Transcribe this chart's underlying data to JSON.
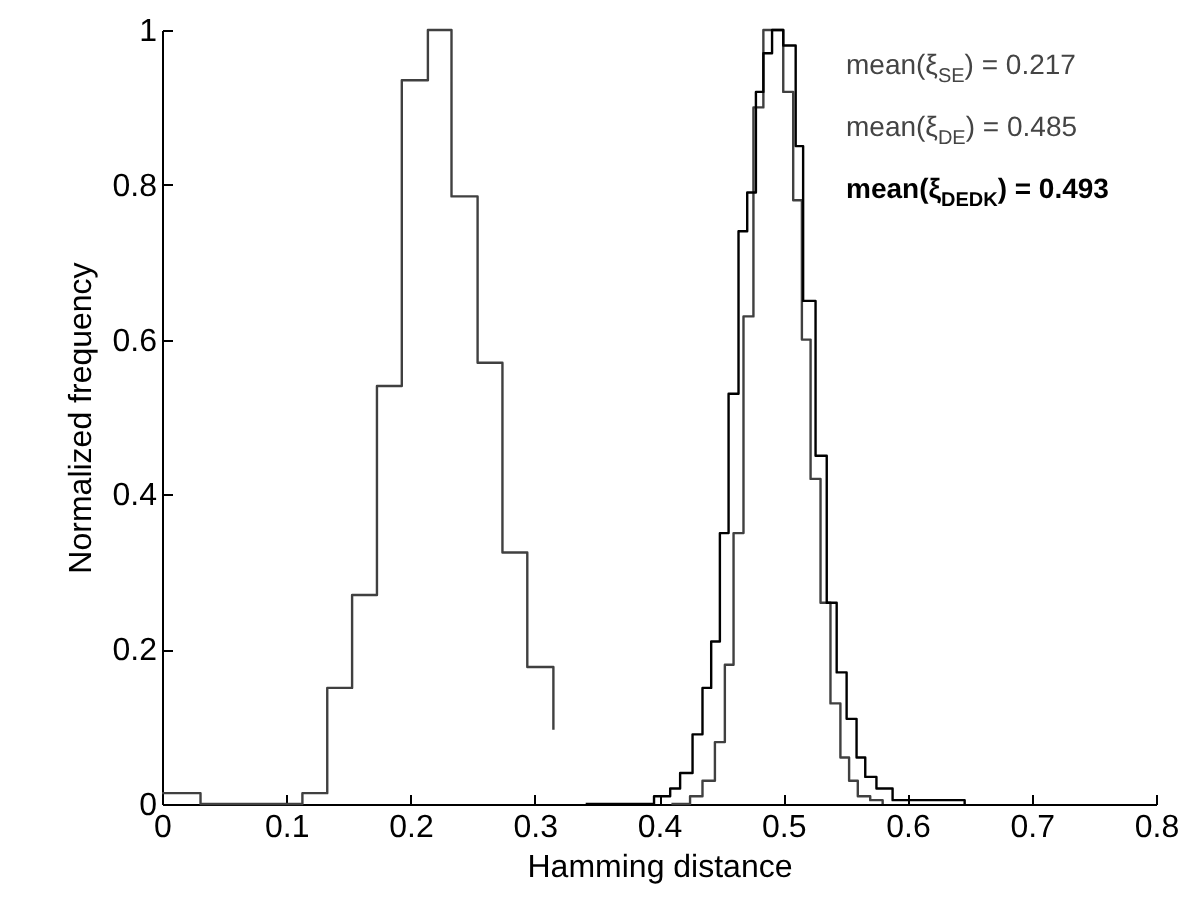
{
  "chart_data": {
    "type": "step",
    "xlabel": "Hamming distance",
    "ylabel": "Normalized frequency",
    "xlim": [
      0,
      0.8
    ],
    "xticks": [
      0,
      0.1,
      0.2,
      0.3,
      0.4,
      0.5,
      0.6,
      0.7,
      0.8
    ],
    "ylim": [
      0,
      1
    ],
    "yticks": [
      0,
      {
        "value": 0.2,
        "label": "0.2"
      },
      {
        "value": 0.4,
        "label": "0.4"
      },
      {
        "value": 0.6,
        "label": "0.6"
      },
      {
        "value": 0.8,
        "label": "0.8"
      },
      1
    ],
    "grid": false,
    "marker": "none",
    "line_style": "solid",
    "annotations": [
      "mean(ξ$_{SE}$) = 0.217",
      "mean(ξ$_{DE}$) = 0.485",
      "mean(ξ$_{DEDK}$) = 0.493"
    ],
    "series": [
      {
        "color": "#404040",
        "x": [
          0,
          0.031,
          0.113,
          0.133,
          0.153,
          0.173,
          0.193,
          0.214,
          0.233,
          0.254,
          0.274,
          0.294,
          0.315
        ],
        "values": [
          0.014,
          0,
          0.014,
          0.15,
          0.27,
          0.54,
          0.935,
          1.0,
          0.785,
          0.57,
          0.325,
          0.177,
          0.096
        ]
      },
      {
        "color": "#404040",
        "x": [
          0.41,
          0.425,
          0.435,
          0.445,
          0.453,
          0.46,
          0.468,
          0.476,
          0.484,
          0.49,
          0.5,
          0.508,
          0.515,
          0.522,
          0.53,
          0.538,
          0.546,
          0.553,
          0.56,
          0.57,
          0.58
        ],
        "values": [
          0,
          0.01,
          0.03,
          0.08,
          0.18,
          0.35,
          0.63,
          0.9,
          1.0,
          1.0,
          0.92,
          0.78,
          0.6,
          0.42,
          0.26,
          0.13,
          0.06,
          0.03,
          0.01,
          0.005,
          0
        ]
      },
      {
        "color": "#000000",
        "x": [
          0.341,
          0.396,
          0.409,
          0.417,
          0.427,
          0.435,
          0.442,
          0.449,
          0.456,
          0.464,
          0.471,
          0.478,
          0.484,
          0.491,
          0.5,
          0.51,
          0.516,
          0.526,
          0.535,
          0.543,
          0.551,
          0.559,
          0.566,
          0.575,
          0.588,
          0.646
        ],
        "values": [
          0,
          0.01,
          0.02,
          0.04,
          0.09,
          0.15,
          0.21,
          0.35,
          0.53,
          0.74,
          0.79,
          0.92,
          0.97,
          1.0,
          0.98,
          0.85,
          0.65,
          0.45,
          0.26,
          0.17,
          0.11,
          0.06,
          0.035,
          0.02,
          0.005,
          0
        ]
      }
    ]
  }
}
